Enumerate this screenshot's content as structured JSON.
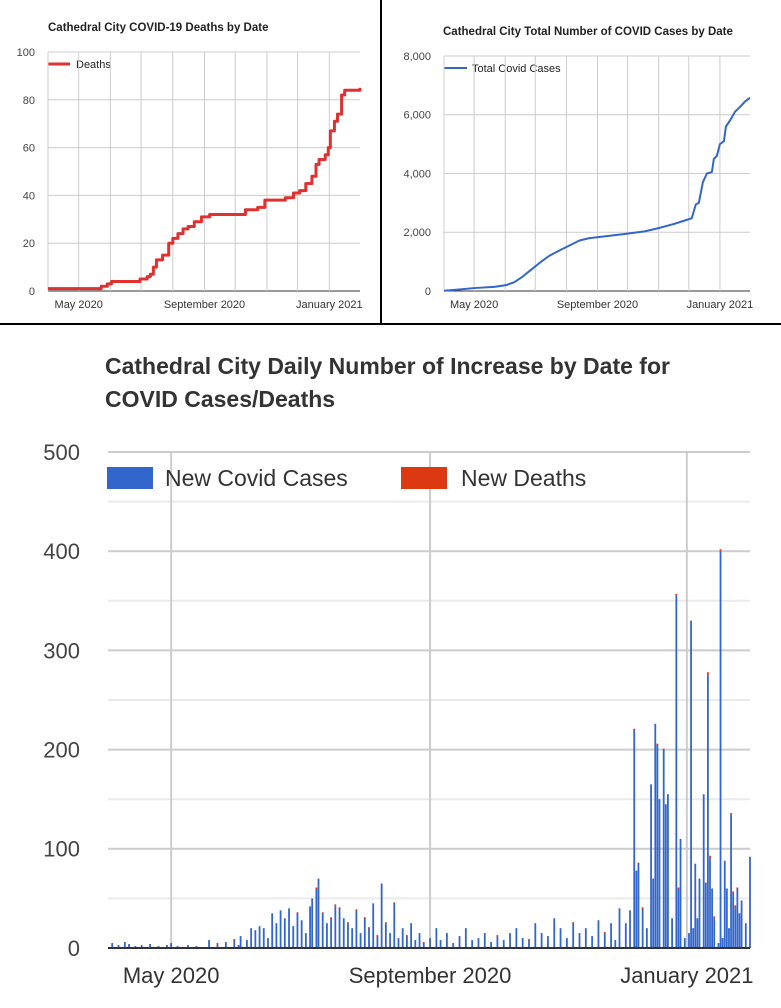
{
  "chart_data": [
    {
      "type": "line",
      "title": "Cathedral City COVID-19 Deaths by Date",
      "legend": [
        "Deaths"
      ],
      "legend_position": "top-left",
      "color": "#e03131",
      "x_unit": "days since 2020-04-01",
      "xlim": [
        0,
        305
      ],
      "ylim": [
        0,
        100
      ],
      "yticks": [
        0,
        20,
        40,
        60,
        80,
        100
      ],
      "ytick_labels": [
        "0",
        "20",
        "40",
        "60",
        "80",
        "100"
      ],
      "xticks": [
        {
          "day": 30,
          "label": "May 2020"
        },
        {
          "day": 153,
          "label": "September 2020"
        },
        {
          "day": 275,
          "label": "January 2021"
        }
      ],
      "points": [
        [
          0,
          1
        ],
        [
          52,
          2
        ],
        [
          58,
          3
        ],
        [
          62,
          4
        ],
        [
          90,
          5
        ],
        [
          97,
          6
        ],
        [
          100,
          7
        ],
        [
          103,
          10
        ],
        [
          106,
          13
        ],
        [
          112,
          15
        ],
        [
          118,
          20
        ],
        [
          122,
          22
        ],
        [
          127,
          24
        ],
        [
          132,
          26
        ],
        [
          137,
          27
        ],
        [
          143,
          29
        ],
        [
          150,
          31
        ],
        [
          158,
          32
        ],
        [
          193,
          34
        ],
        [
          205,
          35
        ],
        [
          212,
          38
        ],
        [
          232,
          39
        ],
        [
          240,
          41
        ],
        [
          246,
          42
        ],
        [
          252,
          45
        ],
        [
          258,
          48
        ],
        [
          262,
          53
        ],
        [
          265,
          55
        ],
        [
          271,
          57
        ],
        [
          274,
          60
        ],
        [
          276,
          67
        ],
        [
          280,
          71
        ],
        [
          283,
          74
        ],
        [
          287,
          82
        ],
        [
          290,
          84
        ],
        [
          305,
          85
        ]
      ]
    },
    {
      "type": "line",
      "title": "Cathedral City Total Number of COVID Cases by Date",
      "legend": [
        "Total Covid Cases"
      ],
      "legend_position": "top-left",
      "color": "#3366cc",
      "x_unit": "days since 2020-04-01",
      "xlim": [
        0,
        305
      ],
      "ylim": [
        0,
        8000
      ],
      "yticks": [
        0,
        2000,
        4000,
        6000,
        8000
      ],
      "ytick_labels": [
        "0",
        "2,000",
        "4,000",
        "6,000",
        "8,000"
      ],
      "xticks": [
        {
          "day": 30,
          "label": "May 2020"
        },
        {
          "day": 153,
          "label": "September 2020"
        },
        {
          "day": 275,
          "label": "January 2021"
        }
      ],
      "points": [
        [
          0,
          10
        ],
        [
          15,
          50
        ],
        [
          30,
          100
        ],
        [
          50,
          140
        ],
        [
          62,
          200
        ],
        [
          70,
          300
        ],
        [
          78,
          480
        ],
        [
          86,
          700
        ],
        [
          95,
          950
        ],
        [
          105,
          1200
        ],
        [
          115,
          1380
        ],
        [
          125,
          1550
        ],
        [
          135,
          1720
        ],
        [
          145,
          1800
        ],
        [
          160,
          1860
        ],
        [
          180,
          1940
        ],
        [
          200,
          2030
        ],
        [
          215,
          2150
        ],
        [
          230,
          2290
        ],
        [
          240,
          2400
        ],
        [
          247,
          2480
        ],
        [
          251,
          2950
        ],
        [
          254,
          3000
        ],
        [
          258,
          3700
        ],
        [
          262,
          4000
        ],
        [
          267,
          4050
        ],
        [
          269,
          4500
        ],
        [
          272,
          4600
        ],
        [
          275,
          5000
        ],
        [
          279,
          5100
        ],
        [
          281,
          5600
        ],
        [
          285,
          5800
        ],
        [
          290,
          6100
        ],
        [
          296,
          6300
        ],
        [
          300,
          6450
        ],
        [
          305,
          6580
        ]
      ]
    },
    {
      "type": "bar",
      "stacked": true,
      "title_lines": [
        "Cathedral City Daily Number of Increase by Date for",
        "COVID Cases/Deaths"
      ],
      "legend": [
        {
          "name": "New Covid Cases",
          "color": "#3366cc"
        },
        {
          "name": "New Deaths",
          "color": "#dc3912"
        }
      ],
      "legend_position": "top",
      "x_unit": "days since 2020-04-01",
      "xlim": [
        0,
        305
      ],
      "ylim": [
        0,
        500
      ],
      "yticks": [
        0,
        100,
        200,
        300,
        400,
        500
      ],
      "ytick_labels": [
        "0",
        "100",
        "200",
        "300",
        "400",
        "500"
      ],
      "xticks": [
        {
          "day": 30,
          "label": "May 2020"
        },
        {
          "day": 153,
          "label": "September 2020"
        },
        {
          "day": 275,
          "label": "January 2021"
        }
      ],
      "bars": [
        [
          2,
          5,
          0
        ],
        [
          5,
          3,
          0
        ],
        [
          8,
          6,
          0
        ],
        [
          10,
          4,
          0
        ],
        [
          13,
          2,
          0
        ],
        [
          16,
          3,
          0
        ],
        [
          20,
          4,
          0
        ],
        [
          24,
          2,
          0
        ],
        [
          28,
          3,
          0
        ],
        [
          30,
          5,
          0
        ],
        [
          33,
          2,
          0
        ],
        [
          38,
          3,
          0
        ],
        [
          42,
          2,
          0
        ],
        [
          48,
          8,
          0
        ],
        [
          52,
          4,
          1
        ],
        [
          56,
          6,
          0
        ],
        [
          60,
          8,
          1
        ],
        [
          62,
          3,
          0
        ],
        [
          63,
          12,
          0
        ],
        [
          66,
          8,
          0
        ],
        [
          68,
          20,
          0
        ],
        [
          70,
          18,
          0
        ],
        [
          72,
          22,
          0
        ],
        [
          74,
          20,
          0
        ],
        [
          76,
          10,
          0
        ],
        [
          78,
          35,
          0
        ],
        [
          80,
          25,
          0
        ],
        [
          82,
          38,
          0
        ],
        [
          84,
          30,
          0
        ],
        [
          86,
          40,
          0
        ],
        [
          88,
          22,
          0
        ],
        [
          90,
          35,
          1
        ],
        [
          92,
          28,
          0
        ],
        [
          94,
          15,
          0
        ],
        [
          96,
          42,
          0
        ],
        [
          97,
          50,
          0
        ],
        [
          99,
          60,
          1
        ],
        [
          100,
          70,
          0
        ],
        [
          102,
          35,
          1
        ],
        [
          104,
          25,
          0
        ],
        [
          106,
          30,
          1
        ],
        [
          108,
          42,
          2
        ],
        [
          110,
          40,
          1
        ],
        [
          112,
          30,
          0
        ],
        [
          114,
          25,
          1
        ],
        [
          116,
          20,
          0
        ],
        [
          118,
          38,
          1
        ],
        [
          120,
          15,
          0
        ],
        [
          122,
          30,
          1
        ],
        [
          124,
          20,
          1
        ],
        [
          126,
          45,
          0
        ],
        [
          128,
          12,
          1
        ],
        [
          130,
          65,
          0
        ],
        [
          132,
          25,
          1
        ],
        [
          134,
          15,
          0
        ],
        [
          136,
          45,
          1
        ],
        [
          138,
          10,
          0
        ],
        [
          140,
          20,
          0
        ],
        [
          142,
          12,
          1
        ],
        [
          144,
          25,
          0
        ],
        [
          146,
          8,
          0
        ],
        [
          148,
          15,
          0
        ],
        [
          150,
          5,
          1
        ],
        [
          153,
          10,
          0
        ],
        [
          156,
          20,
          0
        ],
        [
          158,
          8,
          0
        ],
        [
          161,
          15,
          0
        ],
        [
          164,
          5,
          0
        ],
        [
          167,
          12,
          0
        ],
        [
          170,
          20,
          0
        ],
        [
          173,
          8,
          0
        ],
        [
          176,
          10,
          0
        ],
        [
          179,
          15,
          0
        ],
        [
          182,
          6,
          0
        ],
        [
          185,
          12,
          1
        ],
        [
          188,
          8,
          0
        ],
        [
          191,
          15,
          0
        ],
        [
          194,
          20,
          0
        ],
        [
          197,
          10,
          0
        ],
        [
          200,
          8,
          1
        ],
        [
          203,
          25,
          0
        ],
        [
          206,
          15,
          0
        ],
        [
          209,
          12,
          0
        ],
        [
          212,
          30,
          0
        ],
        [
          215,
          20,
          0
        ],
        [
          218,
          10,
          0
        ],
        [
          221,
          25,
          1
        ],
        [
          224,
          15,
          0
        ],
        [
          227,
          20,
          0
        ],
        [
          230,
          12,
          0
        ],
        [
          233,
          28,
          0
        ],
        [
          236,
          15,
          1
        ],
        [
          239,
          25,
          0
        ],
        [
          241,
          8,
          0
        ],
        [
          243,
          40,
          0
        ],
        [
          246,
          25,
          0
        ],
        [
          248,
          38,
          0
        ],
        [
          250,
          220,
          1
        ],
        [
          251,
          78,
          0
        ],
        [
          252,
          85,
          1
        ],
        [
          254,
          40,
          1
        ],
        [
          256,
          20,
          0
        ],
        [
          258,
          165,
          0
        ],
        [
          259,
          70,
          0
        ],
        [
          260,
          226,
          0
        ],
        [
          261,
          205,
          1
        ],
        [
          262,
          150,
          0
        ],
        [
          264,
          200,
          1
        ],
        [
          265,
          145,
          0
        ],
        [
          266,
          155,
          0
        ],
        [
          268,
          30,
          0
        ],
        [
          270,
          355,
          2
        ],
        [
          271,
          60,
          1
        ],
        [
          272,
          110,
          0
        ],
        [
          274,
          10,
          0
        ],
        [
          276,
          15,
          0
        ],
        [
          277,
          330,
          0
        ],
        [
          278,
          20,
          0
        ],
        [
          279,
          85,
          0
        ],
        [
          280,
          30,
          0
        ],
        [
          281,
          70,
          0
        ],
        [
          283,
          155,
          0
        ],
        [
          284,
          65,
          1
        ],
        [
          285,
          275,
          3
        ],
        [
          286,
          90,
          3
        ],
        [
          287,
          60,
          0
        ],
        [
          288,
          30,
          2
        ],
        [
          290,
          5,
          0
        ],
        [
          291,
          400,
          2
        ],
        [
          292,
          10,
          0
        ],
        [
          293,
          88,
          0
        ],
        [
          294,
          60,
          0
        ],
        [
          295,
          20,
          0
        ],
        [
          296,
          135,
          1
        ],
        [
          297,
          55,
          2
        ],
        [
          298,
          40,
          3
        ],
        [
          299,
          60,
          1
        ],
        [
          300,
          35,
          0
        ],
        [
          301,
          48,
          0
        ],
        [
          303,
          25,
          0
        ],
        [
          305,
          92,
          0
        ]
      ]
    }
  ]
}
